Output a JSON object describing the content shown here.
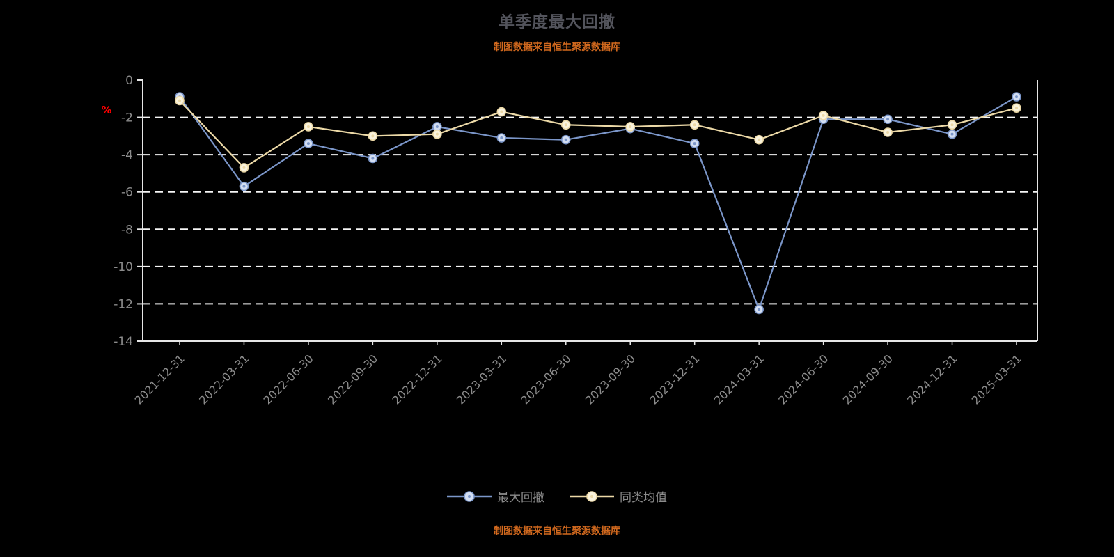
{
  "title": "单季度最大回撤",
  "subtitle_top": "制图数据来自恒生聚源数据库",
  "footer_note": "制图数据来自恒生聚源数据库",
  "colors": {
    "background": "#000000",
    "title": "#53545c",
    "source_note": "#d2691e",
    "axis": "#e6e6e6",
    "grid": "#f5f5f5",
    "tick_label": "#8c8c8c",
    "legend_label": "#8c8c8c",
    "percent": "#ff0000"
  },
  "legend": [
    {
      "label": "最大回撤",
      "color": "#7b96c9",
      "marker_fill": "#d3def2"
    },
    {
      "label": "同类均值",
      "color": "#ecd9a7",
      "marker_fill": "#faf3dd"
    }
  ],
  "chart_data": {
    "type": "line",
    "title": "单季度最大回撤",
    "ylabel": "%",
    "ylim": [
      -14,
      0
    ],
    "yticks": [
      0,
      -2,
      -4,
      -6,
      -8,
      -10,
      -12,
      -14
    ],
    "grid": true,
    "legend_position": "bottom",
    "x": [
      "2021-12-31",
      "2022-03-31",
      "2022-06-30",
      "2022-09-30",
      "2022-12-31",
      "2023-03-31",
      "2023-06-30",
      "2023-09-30",
      "2023-12-31",
      "2024-03-31",
      "2024-06-30",
      "2024-09-30",
      "2024-12-31",
      "2025-03-31"
    ],
    "series": [
      {
        "name": "最大回撤",
        "color": "#7b96c9",
        "marker_fill": "#d3def2",
        "values": [
          -0.9,
          -5.7,
          -3.4,
          -4.2,
          -2.5,
          -3.1,
          -3.2,
          -2.6,
          -3.4,
          -12.3,
          -2.1,
          -2.1,
          -2.9,
          -0.9
        ]
      },
      {
        "name": "同类均值",
        "color": "#ecd9a7",
        "marker_fill": "#faf3dd",
        "values": [
          -1.1,
          -4.7,
          -2.5,
          -3.0,
          -2.9,
          -1.7,
          -2.4,
          -2.5,
          -2.4,
          -3.2,
          -1.9,
          -2.8,
          -2.4,
          -1.5
        ]
      }
    ]
  }
}
